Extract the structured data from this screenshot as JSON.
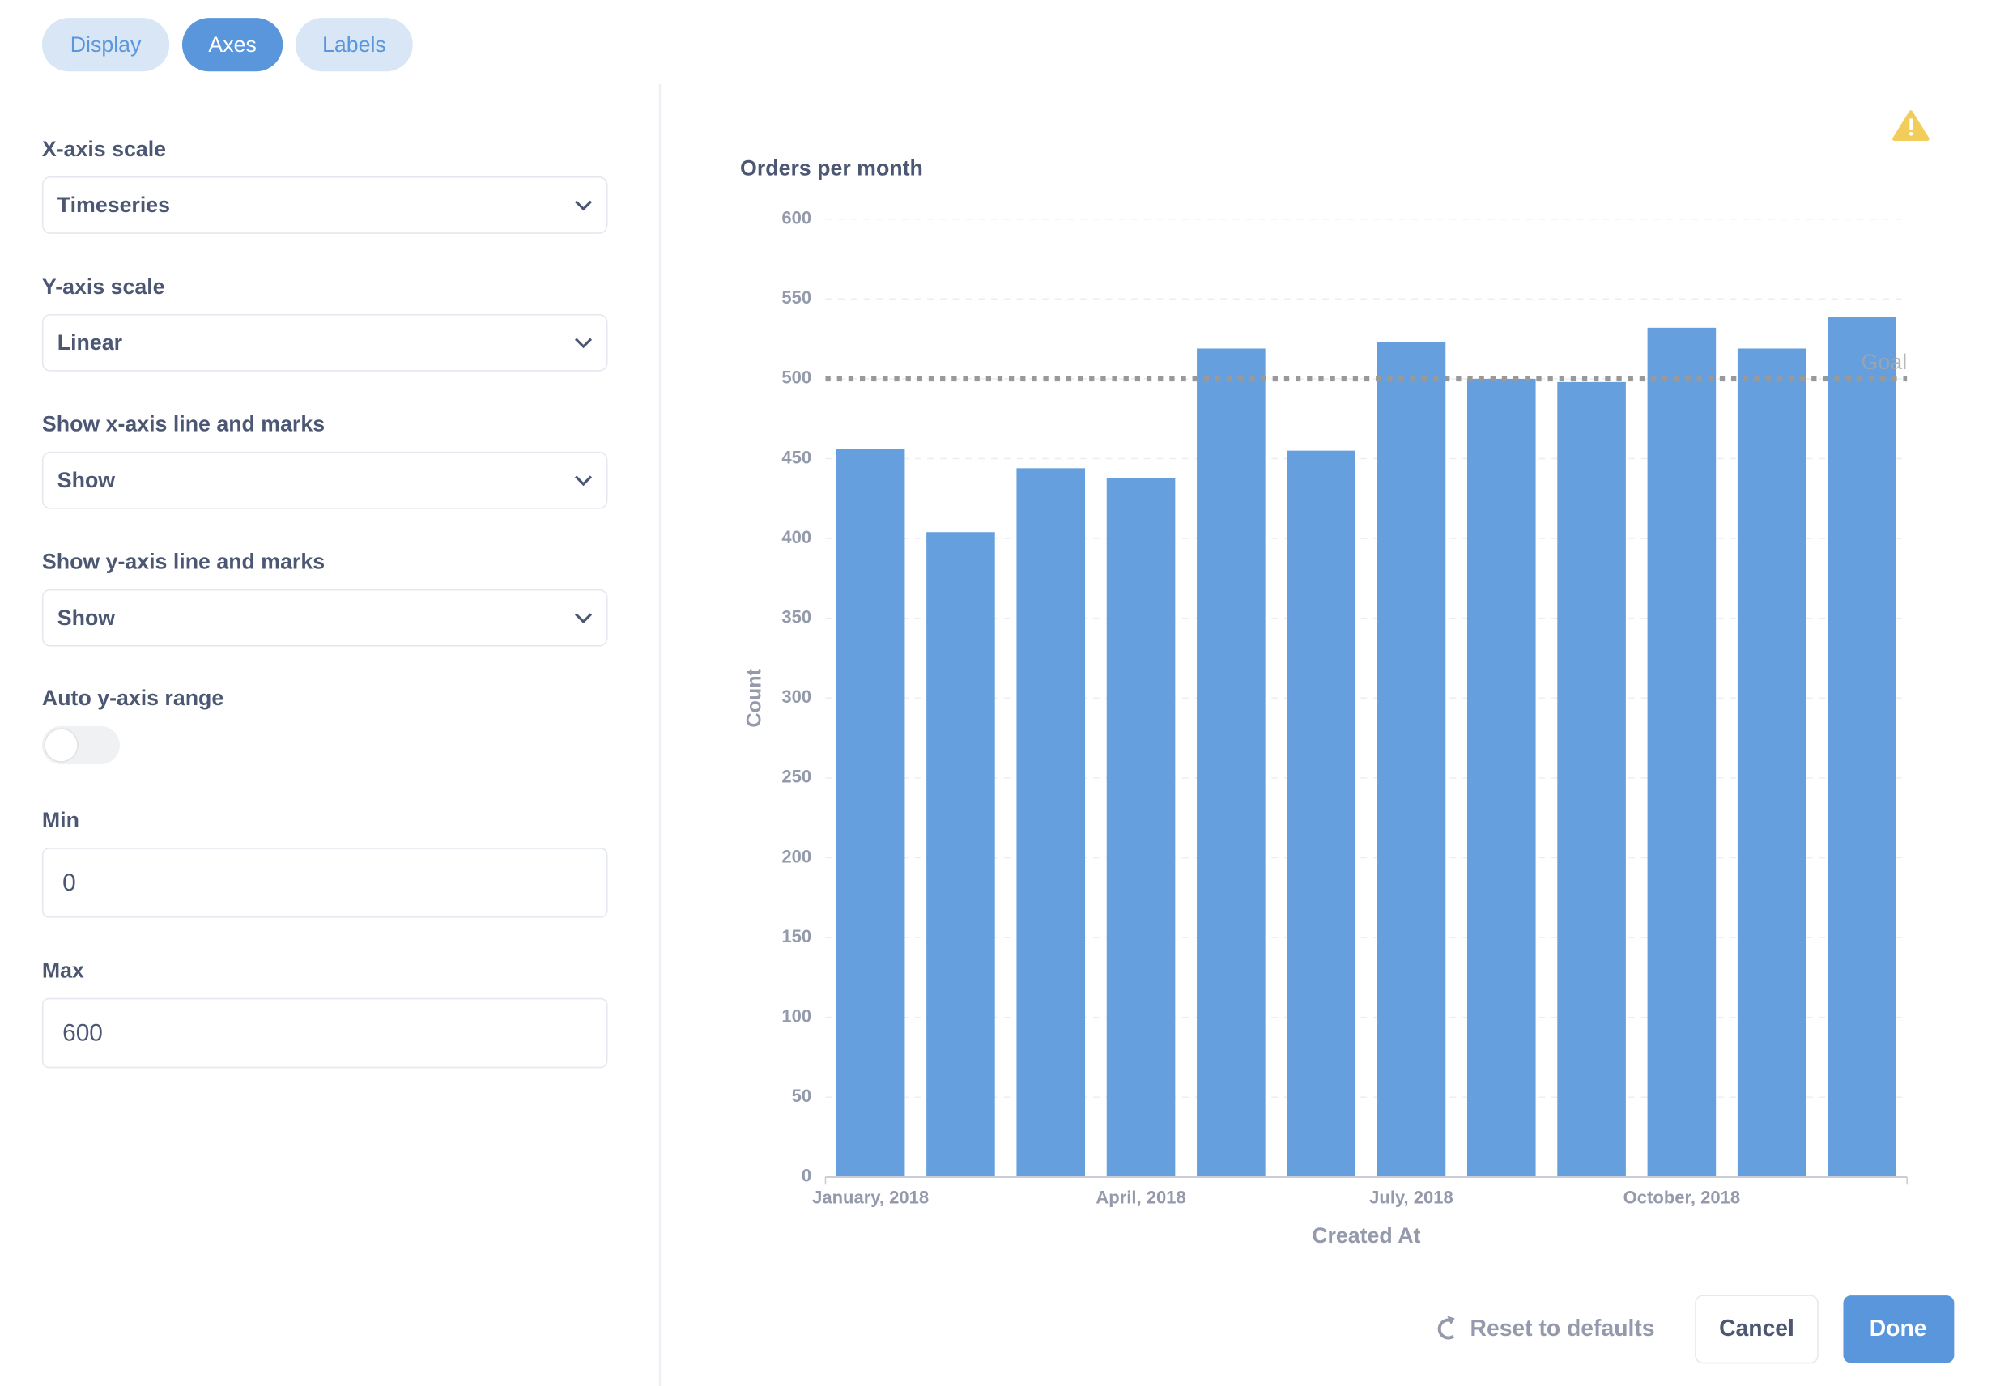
{
  "tabs": [
    {
      "label": "Display",
      "active": false
    },
    {
      "label": "Axes",
      "active": true
    },
    {
      "label": "Labels",
      "active": false
    }
  ],
  "settings": [
    {
      "label": "X-axis scale",
      "kind": "select",
      "value": "Timeseries"
    },
    {
      "label": "Y-axis scale",
      "kind": "select",
      "value": "Linear"
    },
    {
      "label": "Show x-axis line and marks",
      "kind": "select",
      "value": "Show"
    },
    {
      "label": "Show y-axis line and marks",
      "kind": "select",
      "value": "Show"
    },
    {
      "label": "Auto y-axis range",
      "kind": "toggle",
      "on": false
    },
    {
      "label": "Min",
      "kind": "input",
      "value": "0"
    },
    {
      "label": "Max",
      "kind": "input",
      "value": "600"
    }
  ],
  "chart_data": {
    "type": "bar",
    "title": "Orders per month",
    "x_label": "Created At",
    "y_label": "Count",
    "categories": [
      "January, 2018",
      null,
      null,
      "April, 2018",
      null,
      null,
      "July, 2018",
      null,
      null,
      "October, 2018",
      null,
      null
    ],
    "values": [
      456,
      404,
      444,
      438,
      519,
      455,
      523,
      500,
      498,
      532,
      519,
      539
    ],
    "color": "#659fde",
    "ylim": [
      0,
      600
    ],
    "yticks": [
      0,
      50,
      100,
      150,
      200,
      250,
      300,
      350,
      400,
      450,
      500,
      550,
      600
    ],
    "grid": true,
    "goal": {
      "value": 500,
      "label": "Goal"
    }
  },
  "footer": {
    "reset": "Reset to defaults",
    "cancel": "Cancel",
    "done": "Done"
  }
}
